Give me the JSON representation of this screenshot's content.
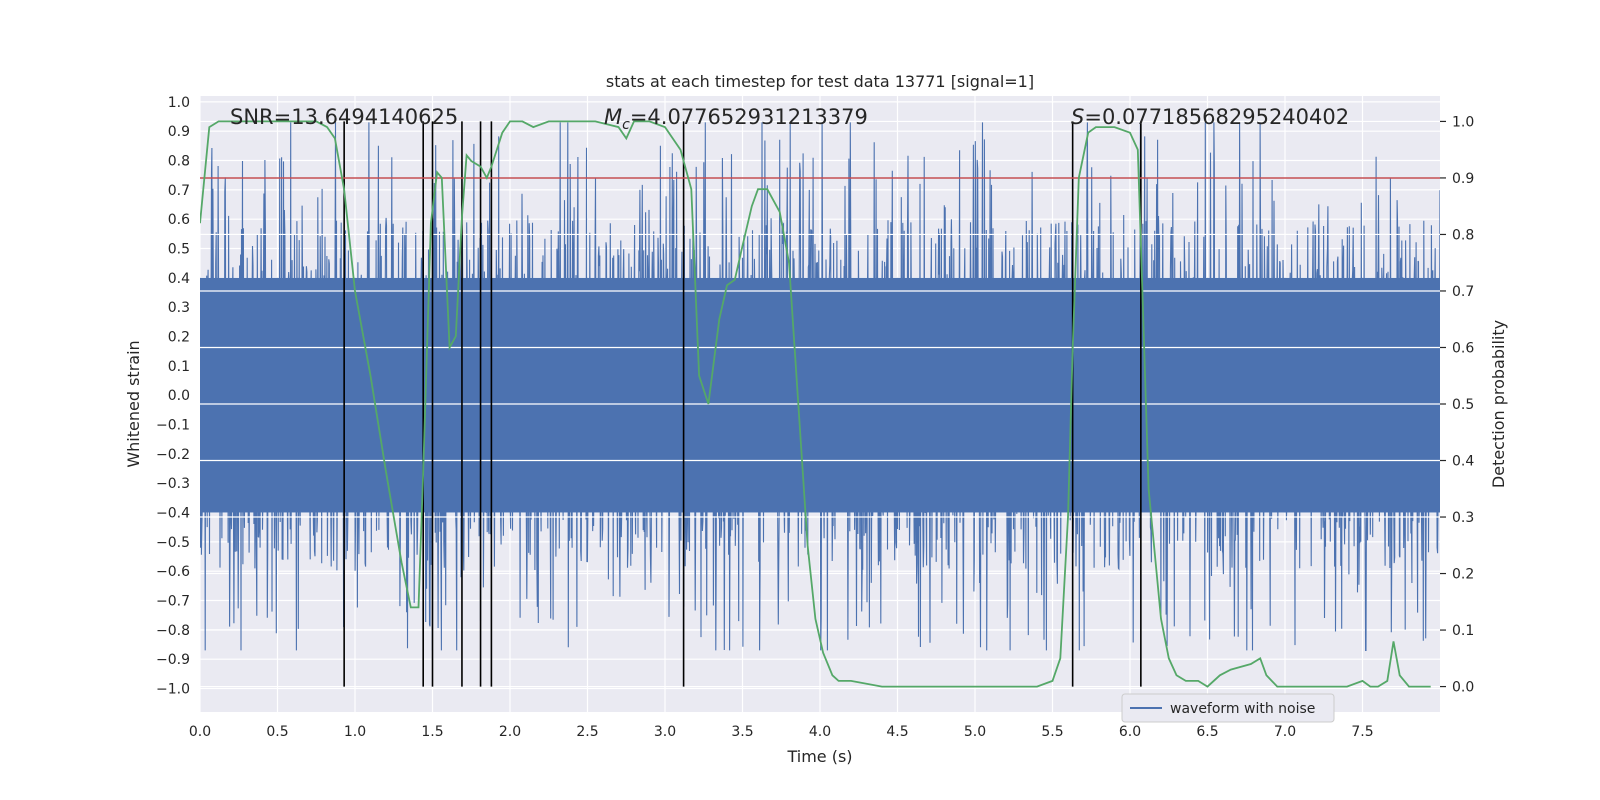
{
  "chart_data": {
    "type": "line",
    "title": "stats at each timestep for test data 13771 [signal=1]",
    "xlabel": "Time (s)",
    "ylabel_left": "Whitened strain",
    "ylabel_right": "Detection probability",
    "xlim": [
      0,
      8
    ],
    "ylim_left": [
      -1.08,
      1.02
    ],
    "ylim_right": [
      -0.045,
      1.045
    ],
    "x_ticks": [
      0.0,
      0.5,
      1.0,
      1.5,
      2.0,
      2.5,
      3.0,
      3.5,
      4.0,
      4.5,
      5.0,
      5.5,
      6.0,
      6.5,
      7.0,
      7.5
    ],
    "x_tick_labels": [
      "0.0",
      "0.5",
      "1.0",
      "1.5",
      "2.0",
      "2.5",
      "3.0",
      "3.5",
      "4.0",
      "4.5",
      "5.0",
      "5.5",
      "6.0",
      "6.5",
      "7.0",
      "7.5"
    ],
    "y_left_ticks": [
      1.0,
      0.9,
      0.8,
      0.7,
      0.6,
      0.5,
      0.4,
      0.3,
      0.2,
      0.1,
      0.0,
      -0.1,
      -0.2,
      -0.3,
      -0.4,
      -0.5,
      -0.6,
      -0.7,
      -0.8,
      -0.9,
      -1.0
    ],
    "y_left_tick_labels": [
      "1.0",
      "0.9",
      "0.8",
      "0.7",
      "0.6",
      "0.5",
      "0.4",
      "0.3",
      "0.2",
      "0.1",
      "0.0",
      "−0.1",
      "−0.2",
      "−0.3",
      "−0.4",
      "−0.5",
      "−0.6",
      "−0.7",
      "−0.8",
      "−0.9",
      "−1.0"
    ],
    "y_right_ticks": [
      1.0,
      0.9,
      0.8,
      0.7,
      0.6,
      0.5,
      0.4,
      0.3,
      0.2,
      0.1,
      0.0
    ],
    "y_right_tick_labels": [
      "1.0",
      "0.9",
      "0.8",
      "0.7",
      "0.6",
      "0.5",
      "0.4",
      "0.3",
      "0.2",
      "0.1",
      "0.0"
    ],
    "annotations": {
      "snr": "SNR=13.6494140625",
      "mc_symbol": "M",
      "mc_sub": "c",
      "mc_value": "=4.077652931213379",
      "s_symbol": "S",
      "s_value": "=0.07718568295240402"
    },
    "threshold": 0.9,
    "vertical_lines": [
      0.93,
      1.44,
      1.5,
      1.69,
      1.81,
      1.88,
      3.12,
      5.63,
      6.07
    ],
    "legend": {
      "label": "waveform with noise",
      "loc": "lower right"
    },
    "series": [
      {
        "name": "waveform with noise",
        "axis": "left",
        "style": "filled-noise",
        "color": "#4c72b0",
        "core_amplitude": [
          -0.4,
          0.4
        ],
        "peak_range": [
          -0.87,
          0.93
        ]
      },
      {
        "name": "detection probability",
        "axis": "right",
        "color": "#55a868",
        "x": [
          0.0,
          0.06,
          0.12,
          0.2,
          0.3,
          0.45,
          0.6,
          0.75,
          0.82,
          0.87,
          0.93,
          1.0,
          1.1,
          1.2,
          1.3,
          1.36,
          1.41,
          1.44,
          1.49,
          1.53,
          1.56,
          1.61,
          1.65,
          1.69,
          1.72,
          1.75,
          1.81,
          1.85,
          1.88,
          1.95,
          2.0,
          2.08,
          2.15,
          2.25,
          2.4,
          2.55,
          2.7,
          2.75,
          2.8,
          2.9,
          3.0,
          3.1,
          3.17,
          3.22,
          3.28,
          3.35,
          3.4,
          3.45,
          3.5,
          3.56,
          3.6,
          3.66,
          3.74,
          3.8,
          3.86,
          3.92,
          3.97,
          4.02,
          4.08,
          4.12,
          4.2,
          4.4,
          4.6,
          4.8,
          5.0,
          5.2,
          5.4,
          5.5,
          5.55,
          5.6,
          5.63,
          5.67,
          5.73,
          5.78,
          5.83,
          5.9,
          6.0,
          6.05,
          6.08,
          6.12,
          6.2,
          6.25,
          6.3,
          6.36,
          6.44,
          6.5,
          6.58,
          6.65,
          6.78,
          6.84,
          6.88,
          6.95,
          7.1,
          7.3,
          7.4,
          7.5,
          7.55,
          7.6,
          7.66,
          7.7,
          7.74,
          7.8,
          7.88,
          7.94
        ],
        "values": [
          0.82,
          0.99,
          1.0,
          1.0,
          1.0,
          1.0,
          1.0,
          1.0,
          0.99,
          0.97,
          0.88,
          0.7,
          0.55,
          0.38,
          0.22,
          0.14,
          0.14,
          0.38,
          0.82,
          0.91,
          0.9,
          0.6,
          0.62,
          0.83,
          0.94,
          0.93,
          0.92,
          0.9,
          0.92,
          0.98,
          1.0,
          1.0,
          0.99,
          1.0,
          1.0,
          1.0,
          0.99,
          0.97,
          1.0,
          1.0,
          0.99,
          0.95,
          0.88,
          0.55,
          0.5,
          0.65,
          0.71,
          0.72,
          0.78,
          0.85,
          0.88,
          0.88,
          0.84,
          0.75,
          0.5,
          0.25,
          0.12,
          0.06,
          0.02,
          0.01,
          0.01,
          0.0,
          0.0,
          0.0,
          0.0,
          0.0,
          0.0,
          0.01,
          0.05,
          0.3,
          0.6,
          0.9,
          0.98,
          0.99,
          0.99,
          0.99,
          0.98,
          0.95,
          0.7,
          0.35,
          0.12,
          0.05,
          0.02,
          0.01,
          0.01,
          0.0,
          0.02,
          0.03,
          0.04,
          0.05,
          0.02,
          0.0,
          0.0,
          0.0,
          0.0,
          0.01,
          0.0,
          0.0,
          0.01,
          0.08,
          0.02,
          0.0,
          0.0,
          0.0
        ]
      },
      {
        "name": "threshold",
        "axis": "right",
        "color": "#c44e52",
        "values": [
          0.9
        ]
      }
    ]
  }
}
